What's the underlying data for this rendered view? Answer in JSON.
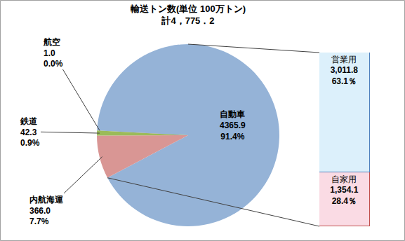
{
  "chart_data": [
    {
      "type": "pie",
      "title": "輸送トン数(単位 100万トン)",
      "subtitle": "計4，775．2",
      "categories": [
        "自動車",
        "内航海運",
        "鉄道",
        "航空"
      ],
      "values": [
        4365.9,
        366.0,
        42.3,
        1.0
      ],
      "value_labels": [
        "4365.9",
        "366.0",
        "42.3",
        "1.0"
      ],
      "percent_labels": [
        "91.4%",
        "7.7%",
        "0.9%",
        "0.0%"
      ],
      "colors": [
        "#95b3d7",
        "#d99694",
        "#9bbb59",
        "#8064a2"
      ],
      "data_labels": true
    },
    {
      "type": "bar",
      "stacked": true,
      "categories": [
        "自動車"
      ],
      "series": [
        {
          "name": "自家用",
          "values": [
            1354.1
          ],
          "value_labels": [
            "1,354.1"
          ],
          "percent_labels": [
            "28.4％"
          ],
          "color": "#fadbe4"
        },
        {
          "name": "営業用",
          "values": [
            3011.8
          ],
          "value_labels": [
            "3,011.8"
          ],
          "percent_labels": [
            "63.1％"
          ],
          "color": "#dcf0fb"
        }
      ],
      "ylim": [
        0,
        4365.9
      ],
      "data_labels": true,
      "tick_labels": false
    }
  ]
}
